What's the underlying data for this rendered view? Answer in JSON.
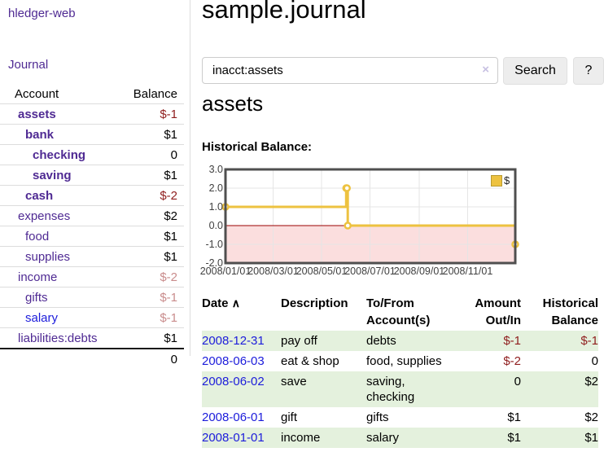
{
  "app": {
    "brand": "hledger-web",
    "nav_journal": "Journal"
  },
  "sidebar": {
    "header": {
      "account": "Account",
      "balance": "Balance"
    },
    "rows": [
      {
        "name": "assets",
        "indent": 1,
        "bold": true,
        "balance": "$-1"
      },
      {
        "name": "bank",
        "indent": 2,
        "bold": true,
        "balance": "$1"
      },
      {
        "name": "checking",
        "indent": 3,
        "bold": true,
        "balance": "0"
      },
      {
        "name": "saving",
        "indent": 3,
        "bold": true,
        "balance": "$1"
      },
      {
        "name": "cash",
        "indent": 2,
        "bold": true,
        "balance": "$-2"
      },
      {
        "name": "expenses",
        "indent": 1,
        "bold": false,
        "balance": "$2"
      },
      {
        "name": "food",
        "indent": 2,
        "bold": false,
        "balance": "$1"
      },
      {
        "name": "supplies",
        "indent": 2,
        "bold": false,
        "balance": "$1"
      },
      {
        "name": "income",
        "indent": 1,
        "bold": false,
        "balance": "$-2"
      },
      {
        "name": "gifts",
        "indent": 2,
        "bold": false,
        "balance": "$-1"
      },
      {
        "name": "salary",
        "indent": 2,
        "bold": false,
        "balance": "$-1",
        "link_color": "blue"
      },
      {
        "name": "liabilities:debts",
        "indent": 1,
        "bold": false,
        "balance": "$1"
      }
    ],
    "total": "0"
  },
  "header": {
    "title": "sample.journal"
  },
  "search": {
    "value": "inacct:assets",
    "clear_icon": "×",
    "button_label": "Search",
    "help_label": "?"
  },
  "account_page": {
    "title": "assets",
    "chart_label": "Historical Balance:"
  },
  "chart_data": {
    "type": "line",
    "title": "Historical Balance",
    "steps": true,
    "series": [
      {
        "name": "$",
        "color": "#edc240",
        "points": [
          [
            "2008-01-01",
            1
          ],
          [
            "2008-06-01",
            2
          ],
          [
            "2008-06-02",
            2
          ],
          [
            "2008-06-03",
            0
          ],
          [
            "2008-12-31",
            -1
          ]
        ]
      }
    ],
    "x_ticks": [
      "2008/01/01",
      "2008/03/01",
      "2008/05/01",
      "2008/07/01",
      "2008/09/01",
      "2008/11/01"
    ],
    "y_ticks": [
      "3.0",
      "2.0",
      "1.0",
      "0.0",
      "-1.0",
      "-2.0"
    ],
    "ylim": [
      -2,
      3
    ],
    "xlim": [
      "2008-01-01",
      "2008-12-31"
    ],
    "grid": true,
    "negative_region_color": "#fbdede",
    "zero_line_color": "#9b0000",
    "legend": {
      "label": "$",
      "position": "top-right"
    }
  },
  "register": {
    "columns": [
      "Date",
      "Description",
      "To/From Account(s)",
      "Amount Out/In",
      "Historical Balance"
    ],
    "sort_icon": "∧",
    "rows": [
      {
        "date": "2008-12-31",
        "description": "pay off",
        "accounts": "debts",
        "amount": "$-1",
        "balance": "$-1"
      },
      {
        "date": "2008-06-03",
        "description": "eat & shop",
        "accounts": "food, supplies",
        "amount": "$-2",
        "balance": "0"
      },
      {
        "date": "2008-06-02",
        "description": "save",
        "accounts": "saving, checking",
        "amount": "0",
        "balance": "$2"
      },
      {
        "date": "2008-06-01",
        "description": "gift",
        "accounts": "gifts",
        "amount": "$1",
        "balance": "$2"
      },
      {
        "date": "2008-01-01",
        "description": "income",
        "accounts": "salary",
        "amount": "$1",
        "balance": "$1"
      }
    ]
  }
}
